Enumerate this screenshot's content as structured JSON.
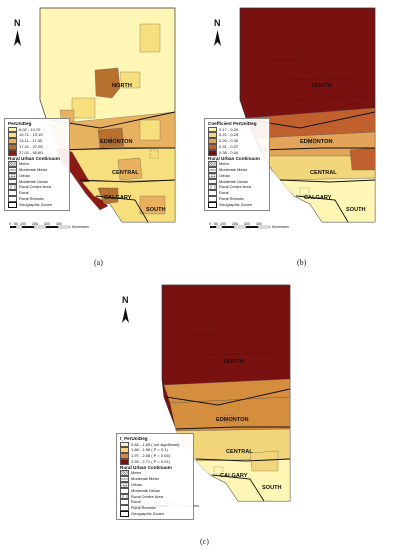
{
  "legend_headers": {
    "rurc": "Rural Urban Continuum"
  },
  "rurc_items": [
    "Metro",
    "Moderate Metro",
    "Urban",
    "Moderate Urban",
    "Rural Centre Area",
    "Rural",
    "Rural Remote",
    "Geographic Zones"
  ],
  "zones": [
    "NORTH",
    "EDMONTON",
    "CENTRAL",
    "CALGARY",
    "SOUTH"
  ],
  "north_letter": "N",
  "scale": {
    "ticks": [
      "0",
      "50",
      "100",
      "200",
      "300",
      "400"
    ],
    "unit": "Kilometers"
  },
  "panels": [
    {
      "caption": "(a)",
      "legend_title": "PerUniDeg",
      "classes": [
        {
          "label": "6.02 - 10.70",
          "color": "#fdf6b4"
        },
        {
          "label": "10.71 - 13.10",
          "color": "#f7df7e"
        },
        {
          "label": "13.11 - 17.40",
          "color": "#e8b160"
        },
        {
          "label": "17.41 - 27.00",
          "color": "#b8702f"
        },
        {
          "label": "27.01 - 50.60",
          "color": "#8a1a12"
        }
      ]
    },
    {
      "caption": "(b)",
      "legend_title": "Coefficient PerUniDeg",
      "classes": [
        {
          "label": "0.17 - 0.20",
          "color": "#fdf6b4"
        },
        {
          "label": "0.21 - 0.25",
          "color": "#f3d57b"
        },
        {
          "label": "0.26 - 0.30",
          "color": "#e2a458"
        },
        {
          "label": "0.31 - 0.37",
          "color": "#c0602f"
        },
        {
          "label": "0.38 - 0.44",
          "color": "#7a1111"
        }
      ]
    },
    {
      "caption": "(c)",
      "legend_title": "t_PerUniDeg",
      "classes": [
        {
          "label": "0.84 - 1.65 ( not significant)",
          "color": "#fdf6b4"
        },
        {
          "label": "1.66 - 1.96 ( P = 0.1)",
          "color": "#f3d57b"
        },
        {
          "label": "1.97 - 2.58 ( P = 0.05)",
          "color": "#d58e3e"
        },
        {
          "label": "2.59 - 2.71 ( P = 0.01)",
          "color": "#7a1111"
        }
      ]
    }
  ]
}
